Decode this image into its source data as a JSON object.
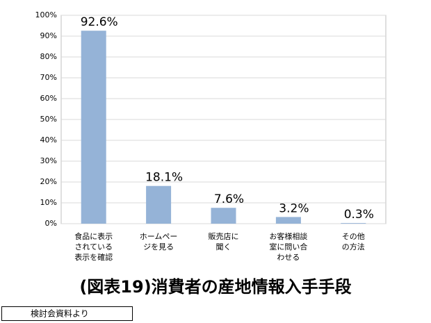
{
  "chart_data": {
    "type": "bar",
    "title": "(図表19)消費者の産地情報入手手段",
    "source": "検討会資料より",
    "categories": [
      "食品に表示\nされている\n表示を確認",
      "ホームペー\nジを見る",
      "販売店に\n聞く",
      "お客様相談\n室に問い合\nわせる",
      "その他\nの方法"
    ],
    "values": [
      92.6,
      18.1,
      7.6,
      3.2,
      0.3
    ],
    "value_labels": [
      "92.6%",
      "18.1%",
      "7.6%",
      "3.2%",
      "0.3%"
    ],
    "color": "#95b3d7",
    "ylim": [
      0,
      100
    ],
    "yticks": [
      {
        "value": 0,
        "label": "0%"
      },
      {
        "value": 10,
        "label": "10%"
      },
      {
        "value": 20,
        "label": "20%"
      },
      {
        "value": 30,
        "label": "30%"
      },
      {
        "value": 40,
        "label": "40%"
      },
      {
        "value": 50,
        "label": "50%"
      },
      {
        "value": 60,
        "label": "60%"
      },
      {
        "value": 70,
        "label": "70%"
      },
      {
        "value": 80,
        "label": "80%"
      },
      {
        "value": 90,
        "label": "90%"
      },
      {
        "value": 100,
        "label": "100%"
      }
    ],
    "grid": true
  }
}
